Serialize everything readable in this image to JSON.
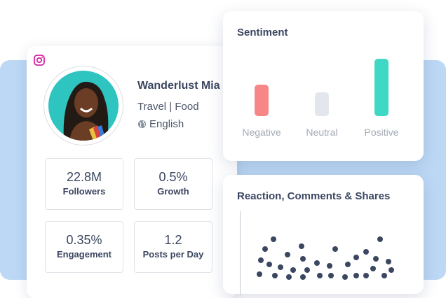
{
  "profile": {
    "name": "Wanderlust Mia",
    "niche": "Travel | Food",
    "language": "English",
    "platform_icon": "instagram-icon",
    "stats": [
      {
        "value": "22.8M",
        "label": "Followers"
      },
      {
        "value": "0.5%",
        "label": "Growth"
      },
      {
        "value": "0.35%",
        "label": "Engagement"
      },
      {
        "value": "1.2",
        "label": "Posts per Day"
      }
    ]
  },
  "sentiment": {
    "title": "Sentiment",
    "bars": [
      {
        "label": "Negative",
        "level": 0.55,
        "color": "#f78787"
      },
      {
        "label": "Neutral",
        "level": 0.42,
        "color": "#e3e6ec"
      },
      {
        "label": "Positive",
        "level": 1.0,
        "color": "#3ed8c4"
      }
    ]
  },
  "reactions": {
    "title": "Reaction, Comments & Shares"
  },
  "colors": {
    "accent_blue": "#bcd8f5",
    "text_dark": "#3b4660",
    "instagram": "#d6249f"
  }
}
